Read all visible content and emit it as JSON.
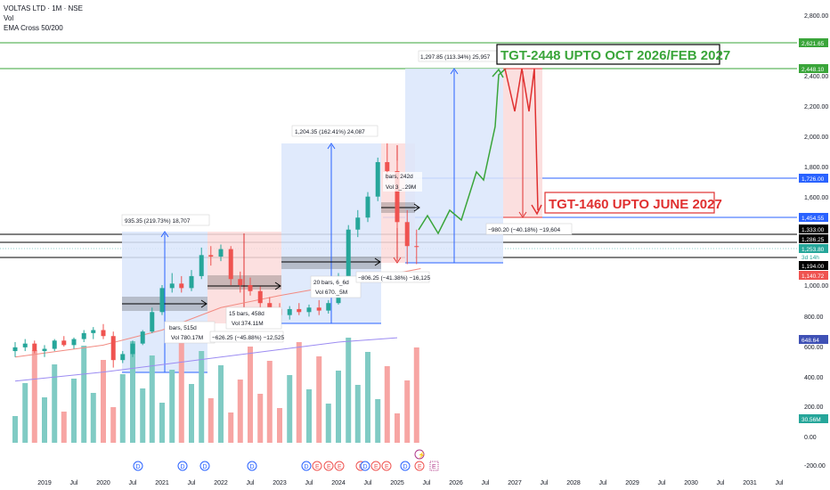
{
  "legend": {
    "symbol": "VOLTAS LTD · 1M · NSE",
    "vol": "Vol",
    "ema": "EMA Cross 50/200"
  },
  "colors": {
    "up": "#26a69a",
    "down": "#ef5350",
    "vol_up": "#80cbc4",
    "vol_down": "#f7a5a3",
    "ema50": "#f28b82",
    "ema200": "#9c8cf2",
    "green": "#3aa53a",
    "red": "#e03030",
    "blue": "#2962ff",
    "box_blue": "#dbe6fb",
    "box_red": "#fbdbdb",
    "black": "#000000"
  },
  "chart_data": {
    "type": "candlestick",
    "title": "VOLTAS LTD · 1M · NSE",
    "x_tick_labels": [
      "2019",
      "Jul",
      "2020",
      "Jul",
      "2021",
      "Jul",
      "2022",
      "Jul",
      "2023",
      "Jul",
      "2024",
      "Jul",
      "2025",
      "Jul",
      "2026",
      "Jul",
      "2027",
      "Jul",
      "2028",
      "Jul",
      "2029",
      "Jul",
      "2030",
      "Jul",
      "2031",
      "Jul"
    ],
    "y_tick_labels": [
      "2,800.00",
      "2,400.00",
      "2,200.00",
      "2,000.00",
      "1,800.00",
      "1,600.00",
      "1,000.00",
      "800.00",
      "600.00",
      "400.00",
      "200.00",
      "0.00",
      "-200.00"
    ],
    "price_range_upper": [
      1000,
      2800
    ],
    "price_candles_monthly": [
      {
        "t": 2018.5,
        "o": 560,
        "h": 620,
        "l": 520,
        "c": 585
      },
      {
        "t": 2018.67,
        "o": 585,
        "h": 640,
        "l": 560,
        "c": 610
      },
      {
        "t": 2018.83,
        "o": 610,
        "h": 630,
        "l": 545,
        "c": 560
      },
      {
        "t": 2019.0,
        "o": 560,
        "h": 600,
        "l": 520,
        "c": 575
      },
      {
        "t": 2019.17,
        "o": 575,
        "h": 640,
        "l": 560,
        "c": 630
      },
      {
        "t": 2019.33,
        "o": 630,
        "h": 660,
        "l": 590,
        "c": 600
      },
      {
        "t": 2019.5,
        "o": 600,
        "h": 650,
        "l": 575,
        "c": 640
      },
      {
        "t": 2019.67,
        "o": 640,
        "h": 700,
        "l": 620,
        "c": 680
      },
      {
        "t": 2019.83,
        "o": 680,
        "h": 720,
        "l": 640,
        "c": 700
      },
      {
        "t": 2020.0,
        "o": 700,
        "h": 740,
        "l": 640,
        "c": 660
      },
      {
        "t": 2020.17,
        "o": 660,
        "h": 690,
        "l": 450,
        "c": 500
      },
      {
        "t": 2020.33,
        "o": 500,
        "h": 560,
        "l": 480,
        "c": 540
      },
      {
        "t": 2020.5,
        "o": 540,
        "h": 630,
        "l": 520,
        "c": 610
      },
      {
        "t": 2020.67,
        "o": 610,
        "h": 700,
        "l": 600,
        "c": 690
      },
      {
        "t": 2020.83,
        "o": 690,
        "h": 850,
        "l": 680,
        "c": 820
      },
      {
        "t": 2021.0,
        "o": 820,
        "h": 1000,
        "l": 800,
        "c": 980
      },
      {
        "t": 2021.17,
        "o": 980,
        "h": 1080,
        "l": 950,
        "c": 1010
      },
      {
        "t": 2021.33,
        "o": 1010,
        "h": 1060,
        "l": 950,
        "c": 980
      },
      {
        "t": 2021.5,
        "o": 980,
        "h": 1100,
        "l": 960,
        "c": 1060
      },
      {
        "t": 2021.67,
        "o": 1060,
        "h": 1250,
        "l": 1040,
        "c": 1200
      },
      {
        "t": 2021.83,
        "o": 1200,
        "h": 1260,
        "l": 1130,
        "c": 1190
      },
      {
        "t": 2022.0,
        "o": 1190,
        "h": 1270,
        "l": 1160,
        "c": 1240
      },
      {
        "t": 2022.17,
        "o": 1240,
        "h": 1260,
        "l": 1000,
        "c": 1040
      },
      {
        "t": 2022.33,
        "o": 1040,
        "h": 1090,
        "l": 950,
        "c": 1000
      },
      {
        "t": 2022.5,
        "o": 1000,
        "h": 1050,
        "l": 930,
        "c": 960
      },
      {
        "t": 2022.67,
        "o": 960,
        "h": 990,
        "l": 850,
        "c": 880
      },
      {
        "t": 2022.83,
        "o": 880,
        "h": 920,
        "l": 810,
        "c": 840
      },
      {
        "t": 2023.0,
        "o": 840,
        "h": 880,
        "l": 780,
        "c": 800
      },
      {
        "t": 2023.17,
        "o": 800,
        "h": 860,
        "l": 770,
        "c": 840
      },
      {
        "t": 2023.33,
        "o": 840,
        "h": 880,
        "l": 800,
        "c": 820
      },
      {
        "t": 2023.5,
        "o": 820,
        "h": 870,
        "l": 790,
        "c": 850
      },
      {
        "t": 2023.67,
        "o": 850,
        "h": 900,
        "l": 800,
        "c": 830
      },
      {
        "t": 2023.83,
        "o": 830,
        "h": 900,
        "l": 810,
        "c": 880
      },
      {
        "t": 2024.0,
        "o": 880,
        "h": 1080,
        "l": 870,
        "c": 1060
      },
      {
        "t": 2024.17,
        "o": 1060,
        "h": 1400,
        "l": 1040,
        "c": 1370
      },
      {
        "t": 2024.33,
        "o": 1370,
        "h": 1500,
        "l": 1320,
        "c": 1450
      },
      {
        "t": 2024.5,
        "o": 1450,
        "h": 1620,
        "l": 1420,
        "c": 1590
      },
      {
        "t": 2024.67,
        "o": 1590,
        "h": 1850,
        "l": 1560,
        "c": 1820
      },
      {
        "t": 2024.83,
        "o": 1820,
        "h": 1945,
        "l": 1700,
        "c": 1760
      },
      {
        "t": 2025.0,
        "o": 1760,
        "h": 1830,
        "l": 1380,
        "c": 1420
      },
      {
        "t": 2025.17,
        "o": 1420,
        "h": 1500,
        "l": 1140,
        "c": 1260
      },
      {
        "t": 2025.33,
        "o": 1260,
        "h": 1370,
        "l": 1140,
        "c": 1253.8
      }
    ],
    "ema50": [
      [
        2018.5,
        520
      ],
      [
        2020.0,
        600
      ],
      [
        2021.0,
        700
      ],
      [
        2022.0,
        850
      ],
      [
        2023.0,
        930
      ],
      [
        2024.0,
        1000
      ],
      [
        2025.0,
        1080
      ],
      [
        2025.4,
        1110
      ]
    ],
    "ema200": [
      [
        2018.5,
        360
      ],
      [
        2020.0,
        420
      ],
      [
        2021.0,
        470
      ],
      [
        2022.0,
        520
      ],
      [
        2023.0,
        570
      ],
      [
        2024.0,
        620
      ],
      [
        2025.0,
        648.64
      ]
    ],
    "volume_range": [
      -200,
      2800
    ],
    "price_scale_labels": [
      {
        "value": 2621.65,
        "text": "2,621.65",
        "color": "#3aa53a"
      },
      {
        "value": 2448.1,
        "text": "2,448.10",
        "color": "#3aa53a"
      },
      {
        "value": 1726.0,
        "text": "1,726.00",
        "color": "#2962ff"
      },
      {
        "value": 1454.55,
        "text": "1,454.55",
        "color": "#2962ff"
      },
      {
        "value": 1333.0,
        "text": "1,333.00",
        "color": "#000000"
      },
      {
        "value": 1286.25,
        "text": "1,286.25",
        "color": "#000000"
      },
      {
        "value": 1253.8,
        "text": "1,253.80",
        "color": "#26a69a"
      },
      {
        "value": 1194.0,
        "text": "1,194.00",
        "color": "#000000"
      },
      {
        "value": 1140.72,
        "text": "1,140.72",
        "color": "#ef5350"
      },
      {
        "value": 648.64,
        "text": "648.64",
        "color": "#3f51b5"
      },
      {
        "value": 30.56,
        "text": "30.56M",
        "color": "#26a69a"
      }
    ],
    "countdown": "3d 14h",
    "annotations": [
      {
        "text": "935.35 (219.73%) 18,707"
      },
      {
        "text": "bars, 515d"
      },
      {
        "text": "Vol 780.17M"
      },
      {
        "text": "15 bars, 458d"
      },
      {
        "text": "Vol 374.11M"
      },
      {
        "text": "−626.25 (−45.88%) −12,525"
      },
      {
        "text": "1,204.35 (162.41%) 24,087"
      },
      {
        "text": "20 bars, 6_6d"
      },
      {
        "text": "Vol 670._5M"
      },
      {
        "text": "−806.25 (−41.38%) −16,125"
      },
      {
        "text": "bars, 242d"
      },
      {
        "text": "Vol 3_..29M"
      },
      {
        "text": "1,297.85 (113.34%) 25,957"
      },
      {
        "text": "−980.20 (−40.18%) −19,604"
      }
    ],
    "target_labels": [
      {
        "text": "TGT-2448 UPTO OCT 2026/FEB 2027",
        "color": "#3aa53a"
      },
      {
        "text": "TGT-1460 UPTO JUNE 2027",
        "color": "#e03030"
      }
    ]
  }
}
